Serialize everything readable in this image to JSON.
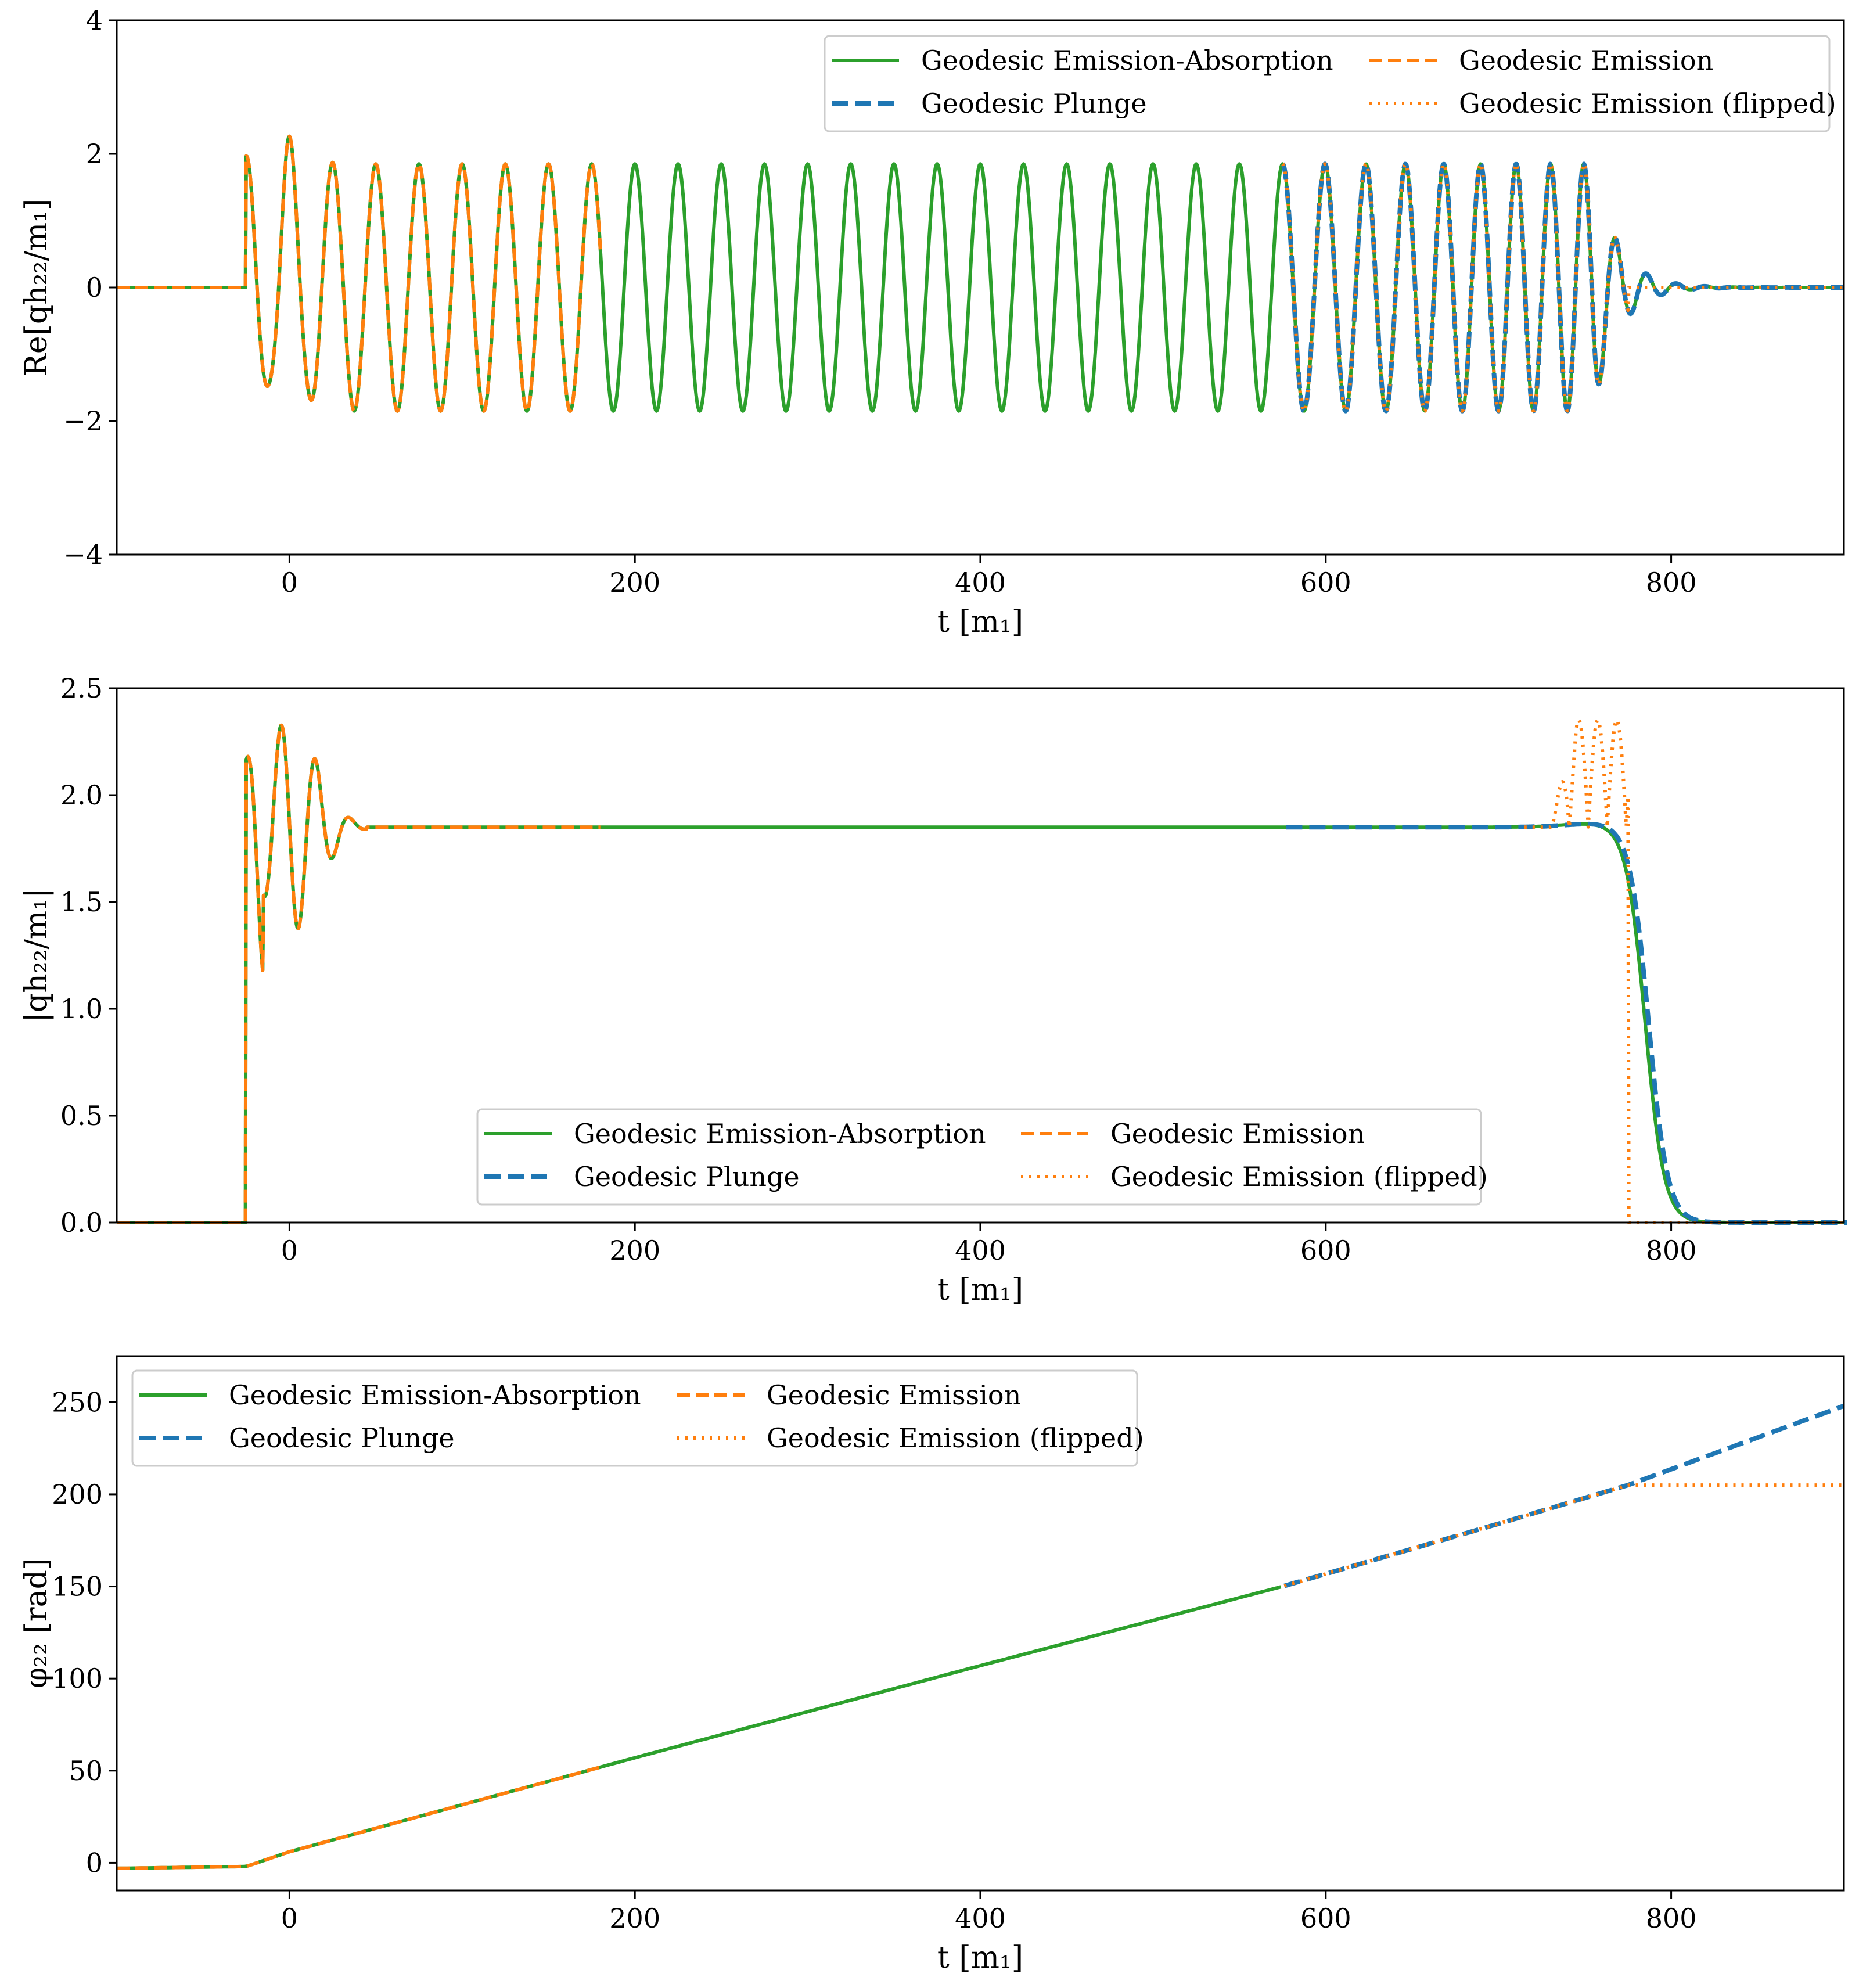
{
  "colors": {
    "emission_absorption": "#2ca02c",
    "plunge": "#1f77b4",
    "emission": "#ff7f0e"
  },
  "legend_entries": [
    {
      "key": "emission_absorption",
      "label": "Geodesic Emission-Absorption",
      "style": "solid"
    },
    {
      "key": "plunge",
      "label": "Geodesic Plunge",
      "style": "dashed"
    },
    {
      "key": "emission",
      "label": "Geodesic Emission",
      "style": "dashed"
    },
    {
      "key": "emission_flipped",
      "label": "Geodesic Emission (flipped)",
      "style": "dotted"
    }
  ],
  "chart_data": [
    {
      "type": "line",
      "id": "real-part",
      "xlabel": "t [m₁]",
      "ylabel": "Re[qh₂₂/m₁]",
      "xlim": [
        -100,
        900
      ],
      "ylim": [
        -4,
        4
      ],
      "xticks": [
        0,
        200,
        400,
        600,
        800
      ],
      "xtick_labels": [
        "0",
        "200",
        "400",
        "600",
        "800"
      ],
      "yticks": [
        -4,
        -2,
        0,
        2,
        4
      ],
      "ytick_labels": [
        "−4",
        "−2",
        "0",
        "2",
        "4"
      ],
      "legend_position": "top-right",
      "amplitude_plateau": 1.85,
      "wave_period": 25,
      "transient_start": -25,
      "ringdown_end": 830,
      "series": [
        {
          "name": "Geodesic Emission-Absorption",
          "color_key": "emission_absorption",
          "style": "solid",
          "t_range": [
            -100,
            900
          ]
        },
        {
          "name": "Geodesic Plunge",
          "color_key": "plunge",
          "style": "dashed",
          "t_range": [
            575,
            900
          ]
        },
        {
          "name": "Geodesic Emission",
          "color_key": "emission",
          "style": "dashed",
          "t_range": [
            -100,
            180
          ]
        },
        {
          "name": "Geodesic Emission (flipped)",
          "color_key": "emission",
          "style": "dotted",
          "t_range": [
            575,
            900
          ]
        }
      ]
    },
    {
      "type": "line",
      "id": "amplitude",
      "xlabel": "t [m₁]",
      "ylabel": "|qh₂₂/m₁|",
      "xlim": [
        -100,
        900
      ],
      "ylim": [
        0,
        2.5
      ],
      "xticks": [
        0,
        200,
        400,
        600,
        800
      ],
      "xtick_labels": [
        "0",
        "200",
        "400",
        "600",
        "800"
      ],
      "yticks": [
        0,
        0.5,
        1.0,
        1.5,
        2.0,
        2.5
      ],
      "ytick_labels": [
        "0.0",
        "0.5",
        "1.0",
        "1.5",
        "2.0",
        "2.5"
      ],
      "legend_position": "bottom-center",
      "plateau": 1.85,
      "peak_initial": 2.37,
      "peak_flipped": 2.36,
      "decay_center": 785,
      "series": [
        {
          "name": "Geodesic Emission-Absorption",
          "color_key": "emission_absorption",
          "style": "solid",
          "t_range": [
            -100,
            900
          ]
        },
        {
          "name": "Geodesic Plunge",
          "color_key": "plunge",
          "style": "dashed",
          "t_range": [
            575,
            900
          ]
        },
        {
          "name": "Geodesic Emission",
          "color_key": "emission",
          "style": "dashed",
          "t_range": [
            -100,
            180
          ]
        },
        {
          "name": "Geodesic Emission (flipped)",
          "color_key": "emission",
          "style": "dotted",
          "t_range": [
            715,
            900
          ]
        }
      ]
    },
    {
      "type": "line",
      "id": "phase",
      "xlabel": "t [m₁]",
      "ylabel": "φ₂₂ [rad]",
      "xlim": [
        -100,
        900
      ],
      "ylim": [
        -15,
        275
      ],
      "xticks": [
        0,
        200,
        400,
        600,
        800
      ],
      "xtick_labels": [
        "0",
        "200",
        "400",
        "600",
        "800"
      ],
      "yticks": [
        0,
        50,
        100,
        150,
        200,
        250
      ],
      "ytick_labels": [
        "0",
        "50",
        "100",
        "150",
        "200",
        "250"
      ],
      "legend_position": "top-left",
      "phase_points": [
        [
          -100,
          -3
        ],
        [
          -25,
          -2
        ],
        [
          0,
          6
        ],
        [
          200,
          57
        ],
        [
          400,
          107
        ],
        [
          575,
          150
        ],
        [
          700,
          184
        ],
        [
          775,
          205
        ],
        [
          900,
          248
        ]
      ],
      "flipped_plateau": 205,
      "series": [
        {
          "name": "Geodesic Emission-Absorption",
          "color_key": "emission_absorption",
          "style": "solid",
          "t_range": [
            -100,
            575
          ]
        },
        {
          "name": "Geodesic Plunge",
          "color_key": "plunge",
          "style": "dashed",
          "t_range": [
            575,
            900
          ]
        },
        {
          "name": "Geodesic Emission",
          "color_key": "emission",
          "style": "dashed",
          "t_range": [
            -100,
            180
          ]
        },
        {
          "name": "Geodesic Emission (flipped)",
          "color_key": "emission",
          "style": "dotted",
          "t_range": [
            575,
            900
          ]
        }
      ]
    }
  ]
}
